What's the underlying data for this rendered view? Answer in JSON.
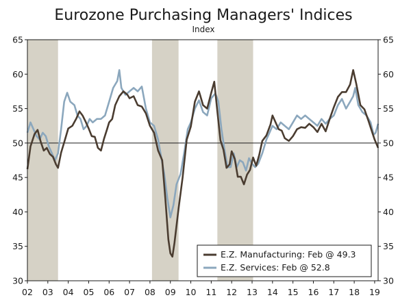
{
  "chart_data": {
    "type": "line",
    "title": "Eurozone Purchasing Managers' Indices",
    "subtitle": "Index",
    "xlabel": "",
    "ylabel": "Index",
    "xlim": [
      2002.0,
      2019.17
    ],
    "ylim": [
      30,
      65
    ],
    "yticks": [
      30,
      35,
      40,
      45,
      50,
      55,
      60,
      65
    ],
    "x_tick_labels": [
      "02",
      "03",
      "04",
      "05",
      "06",
      "07",
      "08",
      "09",
      "10",
      "11",
      "12",
      "13",
      "14",
      "15",
      "16",
      "17",
      "18",
      "19"
    ],
    "x_tick_values": [
      2002,
      2003,
      2004,
      2005,
      2006,
      2007,
      2008,
      2009,
      2010,
      2011,
      2012,
      2013,
      2014,
      2015,
      2016,
      2017,
      2018,
      2019
    ],
    "reference_line": 50,
    "grid": false,
    "recession_shading": [
      {
        "start": 2002.0,
        "end": 2003.5
      },
      {
        "start": 2008.1,
        "end": 2009.4
      },
      {
        "start": 2011.3,
        "end": 2013.05
      }
    ],
    "legend": {
      "placement": "bottom-right",
      "entries": [
        "E.Z. Manufacturing: Feb @ 49.3",
        "E.Z. Services: Feb @ 52.8"
      ]
    },
    "series": [
      {
        "name": "E.Z. Manufacturing: Feb @ 49.3",
        "color": "#4a3c30",
        "points": [
          [
            2002.0,
            46.2
          ],
          [
            2002.15,
            49.5
          ],
          [
            2002.35,
            51.3
          ],
          [
            2002.5,
            51.9
          ],
          [
            2002.65,
            50.2
          ],
          [
            2002.8,
            48.9
          ],
          [
            2002.95,
            49.3
          ],
          [
            2003.1,
            48.4
          ],
          [
            2003.25,
            48.0
          ],
          [
            2003.4,
            46.9
          ],
          [
            2003.5,
            46.4
          ],
          [
            2003.65,
            48.6
          ],
          [
            2003.8,
            50.1
          ],
          [
            2004.0,
            52.1
          ],
          [
            2004.2,
            52.5
          ],
          [
            2004.4,
            53.6
          ],
          [
            2004.55,
            54.6
          ],
          [
            2004.7,
            54.0
          ],
          [
            2004.85,
            53.1
          ],
          [
            2005.0,
            52.1
          ],
          [
            2005.15,
            51.0
          ],
          [
            2005.3,
            50.9
          ],
          [
            2005.45,
            49.3
          ],
          [
            2005.6,
            48.9
          ],
          [
            2005.75,
            50.6
          ],
          [
            2005.9,
            52.0
          ],
          [
            2006.0,
            53.0
          ],
          [
            2006.15,
            53.5
          ],
          [
            2006.3,
            55.5
          ],
          [
            2006.5,
            56.8
          ],
          [
            2006.7,
            57.5
          ],
          [
            2006.9,
            57.0
          ],
          [
            2007.0,
            56.5
          ],
          [
            2007.2,
            56.8
          ],
          [
            2007.4,
            55.5
          ],
          [
            2007.6,
            55.3
          ],
          [
            2007.8,
            54.3
          ],
          [
            2008.0,
            52.5
          ],
          [
            2008.2,
            51.5
          ],
          [
            2008.4,
            48.9
          ],
          [
            2008.6,
            47.5
          ],
          [
            2008.75,
            42.0
          ],
          [
            2008.9,
            36.0
          ],
          [
            2009.0,
            34.0
          ],
          [
            2009.1,
            33.5
          ],
          [
            2009.2,
            35.5
          ],
          [
            2009.4,
            40.5
          ],
          [
            2009.6,
            45.0
          ],
          [
            2009.8,
            50.5
          ],
          [
            2010.0,
            52.4
          ],
          [
            2010.2,
            56.0
          ],
          [
            2010.4,
            57.5
          ],
          [
            2010.6,
            55.5
          ],
          [
            2010.8,
            55.0
          ],
          [
            2011.0,
            57.3
          ],
          [
            2011.15,
            58.9
          ],
          [
            2011.3,
            54.6
          ],
          [
            2011.45,
            50.4
          ],
          [
            2011.6,
            49.0
          ],
          [
            2011.75,
            46.4
          ],
          [
            2011.9,
            46.9
          ],
          [
            2012.0,
            48.8
          ],
          [
            2012.15,
            47.7
          ],
          [
            2012.3,
            45.1
          ],
          [
            2012.45,
            45.1
          ],
          [
            2012.6,
            44.0
          ],
          [
            2012.75,
            45.4
          ],
          [
            2012.9,
            46.1
          ],
          [
            2013.05,
            47.9
          ],
          [
            2013.2,
            46.7
          ],
          [
            2013.35,
            48.3
          ],
          [
            2013.5,
            50.3
          ],
          [
            2013.7,
            51.1
          ],
          [
            2013.9,
            52.7
          ],
          [
            2014.0,
            54.0
          ],
          [
            2014.15,
            53.0
          ],
          [
            2014.3,
            52.0
          ],
          [
            2014.45,
            51.8
          ],
          [
            2014.6,
            50.7
          ],
          [
            2014.8,
            50.3
          ],
          [
            2015.0,
            51.0
          ],
          [
            2015.2,
            52.0
          ],
          [
            2015.4,
            52.3
          ],
          [
            2015.6,
            52.2
          ],
          [
            2015.8,
            52.8
          ],
          [
            2016.0,
            52.3
          ],
          [
            2016.2,
            51.6
          ],
          [
            2016.4,
            52.8
          ],
          [
            2016.6,
            51.7
          ],
          [
            2016.8,
            53.5
          ],
          [
            2017.0,
            55.2
          ],
          [
            2017.2,
            56.7
          ],
          [
            2017.4,
            57.4
          ],
          [
            2017.6,
            57.4
          ],
          [
            2017.8,
            58.5
          ],
          [
            2017.95,
            60.6
          ],
          [
            2018.1,
            58.6
          ],
          [
            2018.3,
            55.5
          ],
          [
            2018.5,
            54.9
          ],
          [
            2018.7,
            53.2
          ],
          [
            2018.9,
            51.4
          ],
          [
            2019.0,
            50.5
          ],
          [
            2019.17,
            49.3
          ]
        ]
      },
      {
        "name": "E.Z. Services: Feb @ 52.8",
        "color": "#8ba7bd",
        "points": [
          [
            2002.0,
            51.5
          ],
          [
            2002.15,
            53.0
          ],
          [
            2002.3,
            52.0
          ],
          [
            2002.45,
            51.0
          ],
          [
            2002.6,
            50.5
          ],
          [
            2002.75,
            51.5
          ],
          [
            2002.9,
            51.0
          ],
          [
            2003.05,
            49.5
          ],
          [
            2003.2,
            48.5
          ],
          [
            2003.35,
            47.5
          ],
          [
            2003.5,
            48.5
          ],
          [
            2003.65,
            52.0
          ],
          [
            2003.8,
            56.0
          ],
          [
            2003.95,
            57.3
          ],
          [
            2004.1,
            56.0
          ],
          [
            2004.3,
            55.5
          ],
          [
            2004.45,
            54.0
          ],
          [
            2004.6,
            53.5
          ],
          [
            2004.75,
            52.0
          ],
          [
            2004.9,
            52.5
          ],
          [
            2005.05,
            53.5
          ],
          [
            2005.2,
            53.0
          ],
          [
            2005.4,
            53.5
          ],
          [
            2005.6,
            53.5
          ],
          [
            2005.8,
            54.0
          ],
          [
            2006.0,
            56.0
          ],
          [
            2006.2,
            58.0
          ],
          [
            2006.4,
            59.0
          ],
          [
            2006.5,
            60.6
          ],
          [
            2006.6,
            58.0
          ],
          [
            2006.8,
            57.0
          ],
          [
            2007.0,
            57.5
          ],
          [
            2007.2,
            58.0
          ],
          [
            2007.4,
            57.5
          ],
          [
            2007.6,
            58.2
          ],
          [
            2007.8,
            55.0
          ],
          [
            2008.0,
            53.0
          ],
          [
            2008.2,
            52.5
          ],
          [
            2008.4,
            50.5
          ],
          [
            2008.55,
            48.0
          ],
          [
            2008.7,
            45.5
          ],
          [
            2008.85,
            42.0
          ],
          [
            2009.0,
            39.2
          ],
          [
            2009.15,
            41.0
          ],
          [
            2009.3,
            44.0
          ],
          [
            2009.5,
            45.5
          ],
          [
            2009.7,
            49.0
          ],
          [
            2009.85,
            52.0
          ],
          [
            2010.0,
            53.0
          ],
          [
            2010.2,
            55.0
          ],
          [
            2010.4,
            56.2
          ],
          [
            2010.6,
            54.5
          ],
          [
            2010.8,
            54.0
          ],
          [
            2011.0,
            56.5
          ],
          [
            2011.2,
            57.2
          ],
          [
            2011.35,
            56.0
          ],
          [
            2011.5,
            52.0
          ],
          [
            2011.65,
            49.0
          ],
          [
            2011.8,
            46.5
          ],
          [
            2011.95,
            46.5
          ],
          [
            2012.1,
            48.5
          ],
          [
            2012.25,
            46.5
          ],
          [
            2012.4,
            47.5
          ],
          [
            2012.55,
            47.2
          ],
          [
            2012.7,
            46.0
          ],
          [
            2012.85,
            47.8
          ],
          [
            2013.0,
            47.0
          ],
          [
            2013.15,
            46.5
          ],
          [
            2013.3,
            47.0
          ],
          [
            2013.5,
            48.5
          ],
          [
            2013.7,
            50.5
          ],
          [
            2013.85,
            51.5
          ],
          [
            2014.0,
            52.5
          ],
          [
            2014.2,
            52.0
          ],
          [
            2014.4,
            53.0
          ],
          [
            2014.6,
            52.5
          ],
          [
            2014.8,
            52.0
          ],
          [
            2015.0,
            53.0
          ],
          [
            2015.2,
            54.0
          ],
          [
            2015.4,
            53.5
          ],
          [
            2015.6,
            54.0
          ],
          [
            2015.8,
            53.5
          ],
          [
            2016.0,
            53.0
          ],
          [
            2016.2,
            52.5
          ],
          [
            2016.4,
            53.5
          ],
          [
            2016.6,
            52.8
          ],
          [
            2016.8,
            53.5
          ],
          [
            2017.0,
            54.0
          ],
          [
            2017.2,
            55.5
          ],
          [
            2017.4,
            56.4
          ],
          [
            2017.6,
            55.0
          ],
          [
            2017.8,
            56.0
          ],
          [
            2017.95,
            56.8
          ],
          [
            2018.05,
            58.0
          ],
          [
            2018.2,
            55.5
          ],
          [
            2018.4,
            54.5
          ],
          [
            2018.6,
            54.0
          ],
          [
            2018.8,
            53.0
          ],
          [
            2018.95,
            51.2
          ],
          [
            2019.05,
            51.5
          ],
          [
            2019.17,
            52.8
          ]
        ]
      }
    ]
  },
  "colors": {
    "shading": "#d6d2c6",
    "reference_line": "#1a1a1a",
    "axis": "#1a1a1a"
  }
}
